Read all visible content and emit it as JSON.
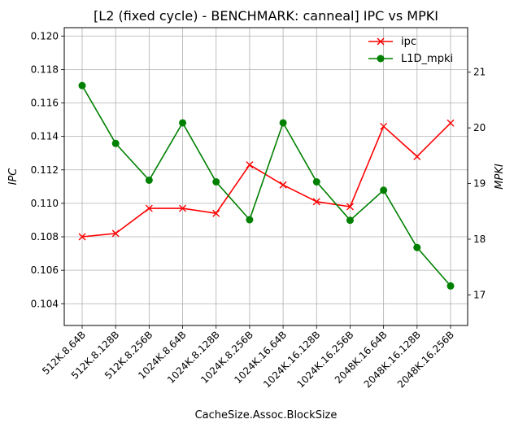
{
  "chart_data": {
    "type": "line",
    "title": "[L2 (fixed cycle) - BENCHMARK: canneal]  IPC vs MPKI",
    "xlabel": "CacheSize.Assoc.BlockSize",
    "ylabel_left": "IPC",
    "ylabel_right": "MPKI",
    "categories": [
      "512K.8.64B",
      "512K.8.128B",
      "512K.8.256B",
      "1024K.8.64B",
      "1024K.8.128B",
      "1024K.8.256B",
      "1024K.16.64B",
      "1024K.16.128B",
      "1024K.16.256B",
      "2048K.16.64B",
      "2048K.16.128B",
      "2048K.16.256B"
    ],
    "y_left": {
      "ylim": [
        0.1027,
        0.1205
      ],
      "ticks": [
        "0.104",
        "0.106",
        "0.108",
        "0.110",
        "0.112",
        "0.114",
        "0.116",
        "0.118",
        "0.120"
      ]
    },
    "y_right": {
      "ylim": [
        16.45,
        21.8
      ],
      "ticks": [
        "17",
        "18",
        "19",
        "20",
        "21"
      ]
    },
    "grid": true,
    "legend": {
      "position": "top-right",
      "entries": [
        "ipc",
        "L1D_mpki"
      ]
    },
    "series": [
      {
        "name": "ipc",
        "axis": "left",
        "color": "#ff0000",
        "marker": "x",
        "values": [
          0.108,
          0.1082,
          0.1097,
          0.1097,
          0.1094,
          0.1123,
          0.1111,
          0.1101,
          0.1098,
          0.1146,
          0.1128,
          0.1148
        ]
      },
      {
        "name": "L1D_mpki",
        "axis": "right",
        "color": "#008000",
        "marker": "o",
        "values": [
          20.76,
          19.72,
          19.06,
          20.09,
          19.03,
          18.35,
          20.09,
          19.03,
          18.34,
          18.88,
          17.85,
          17.16
        ]
      }
    ]
  }
}
